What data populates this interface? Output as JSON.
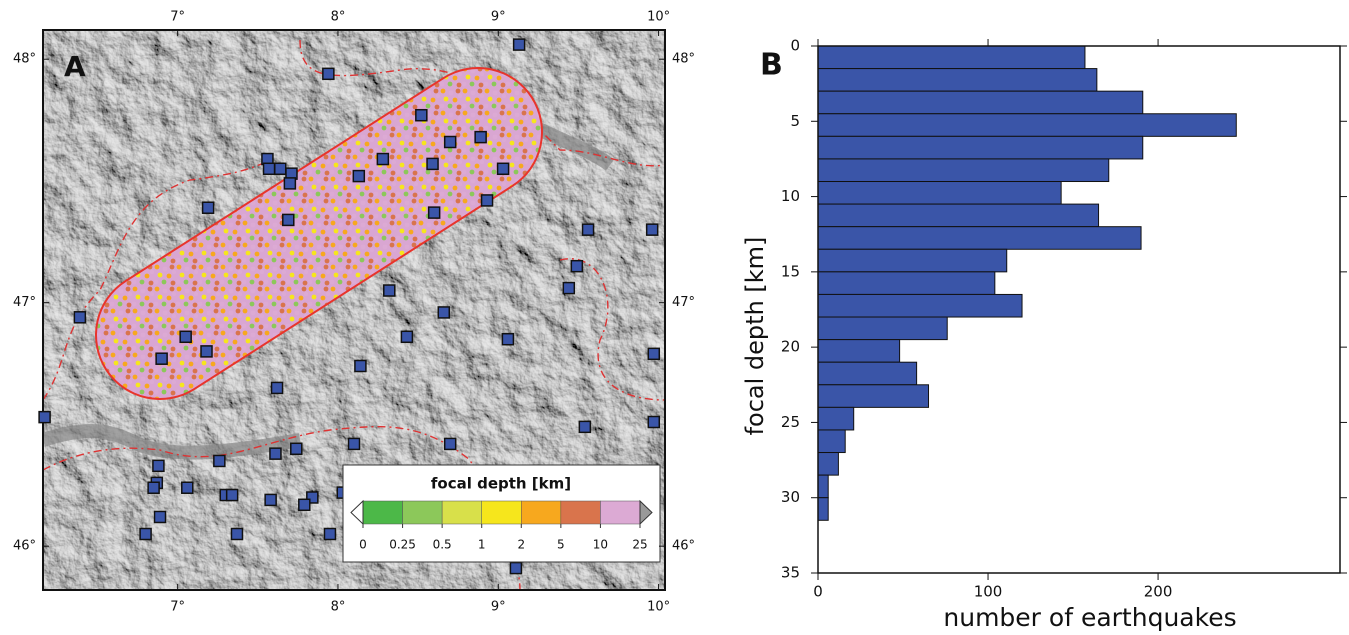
{
  "chart_data": [
    {
      "type": "map",
      "panel": "A",
      "xlim": [
        6.16,
        10.04
      ],
      "ylim": [
        45.82,
        48.12
      ],
      "xticks": [
        {
          "value": 7,
          "label": "7°"
        },
        {
          "value": 8,
          "label": "8°"
        },
        {
          "value": 9,
          "label": "9°"
        },
        {
          "value": 10,
          "label": "10°"
        }
      ],
      "yticks": [
        {
          "value": 46,
          "label": "46°"
        },
        {
          "value": 47,
          "label": "47°"
        },
        {
          "value": 48,
          "label": "48°"
        }
      ],
      "stations": {
        "color": "#3a55a8",
        "lon": [
          9.13,
          7.94,
          8.52,
          8.7,
          8.89,
          8.28,
          7.56,
          7.57,
          7.64,
          7.71,
          7.7,
          8.13,
          8.59,
          9.03,
          7.19,
          7.69,
          8.6,
          8.93,
          9.56,
          9.96,
          9.49,
          9.44,
          8.32,
          8.66,
          6.39,
          7.05,
          6.9,
          7.18,
          8.43,
          9.06,
          8.14,
          7.62,
          9.97,
          6.17,
          9.54,
          9.97,
          8.7,
          8.1,
          7.74,
          7.61,
          6.88,
          7.26,
          7.06,
          6.87,
          6.85,
          7.3,
          7.34,
          7.58,
          7.84,
          7.79,
          8.03,
          6.89,
          6.8,
          7.37,
          7.95,
          9.11
        ],
        "lat": [
          48.06,
          47.94,
          47.77,
          47.66,
          47.68,
          47.59,
          47.59,
          47.55,
          47.55,
          47.53,
          47.49,
          47.52,
          47.57,
          47.55,
          47.39,
          47.34,
          47.37,
          47.42,
          47.3,
          47.3,
          47.15,
          47.06,
          47.05,
          46.96,
          46.94,
          46.86,
          46.77,
          46.8,
          46.86,
          46.85,
          46.74,
          46.65,
          46.79,
          46.53,
          46.49,
          46.51,
          46.42,
          46.42,
          46.4,
          46.38,
          46.33,
          46.35,
          46.24,
          46.26,
          46.24,
          46.21,
          46.21,
          46.19,
          46.2,
          46.17,
          46.22,
          46.12,
          46.05,
          46.05,
          46.05,
          45.91
        ]
      },
      "colorbar": {
        "title": "focal depth  [km]",
        "ticks": [
          0,
          0.25,
          0.5,
          1,
          2,
          5,
          10,
          25
        ],
        "colors": [
          "#4cb848",
          "#8cc85a",
          "#d8e04a",
          "#f6e61c",
          "#f7a81e",
          "#d9744c",
          "#dcaad4"
        ]
      }
    },
    {
      "type": "histogram",
      "panel": "B",
      "orientation": "horizontal",
      "color": "#3a55a8",
      "xlabel": "number of earthquakes",
      "ylabel": "focal depth [km]",
      "bins": [
        0,
        1.5,
        3,
        4.5,
        6,
        7.5,
        9,
        10.5,
        12,
        13.5,
        15,
        16.5,
        18,
        19.5,
        21,
        22.5,
        24,
        25.5,
        27,
        28.5,
        30,
        31.5
      ],
      "counts": [
        157,
        164,
        191,
        246,
        191,
        171,
        143,
        165,
        190,
        111,
        104,
        120,
        76,
        48,
        58,
        65,
        21,
        16,
        12,
        6,
        6
      ],
      "xlim": [
        0,
        307
      ],
      "xticks": [
        0,
        100,
        200
      ],
      "ylim": [
        0,
        35
      ],
      "y_inverted": true,
      "yticks": [
        0,
        5,
        10,
        15,
        20,
        25,
        30,
        35
      ]
    }
  ]
}
